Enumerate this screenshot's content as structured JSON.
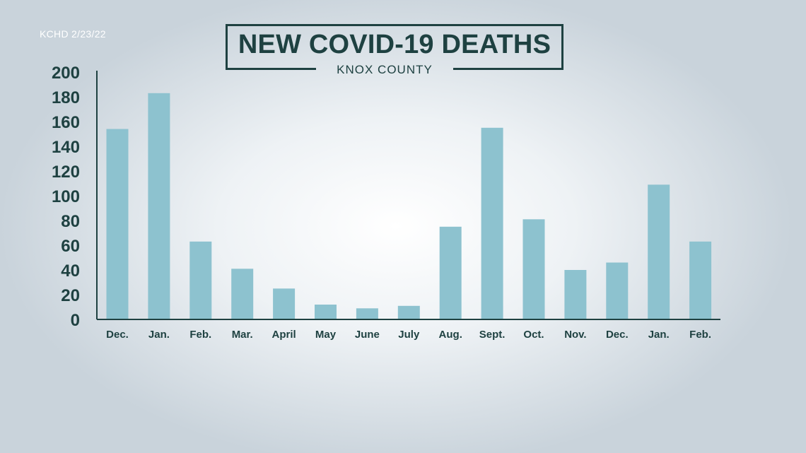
{
  "source_label": "KCHD 2/23/22",
  "chart_data": {
    "type": "bar",
    "title": "NEW COVID-19 DEATHS",
    "subtitle": "KNOX COUNTY",
    "xlabel": "",
    "ylabel": "",
    "ylim": [
      0,
      200
    ],
    "yticks": [
      0,
      20,
      40,
      60,
      80,
      100,
      120,
      140,
      160,
      180,
      200
    ],
    "grid": false,
    "categories": [
      "Dec.",
      "Jan.",
      "Feb.",
      "Mar.",
      "April",
      "May",
      "June",
      "July",
      "Aug.",
      "Sept.",
      "Oct.",
      "Nov.",
      "Dec.",
      "Jan.",
      "Feb."
    ],
    "values": [
      154,
      183,
      63,
      41,
      25,
      12,
      9,
      11,
      75,
      155,
      81,
      40,
      46,
      109,
      63
    ],
    "bar_color": "#8dc2cf",
    "text_color": "#1e4141"
  }
}
